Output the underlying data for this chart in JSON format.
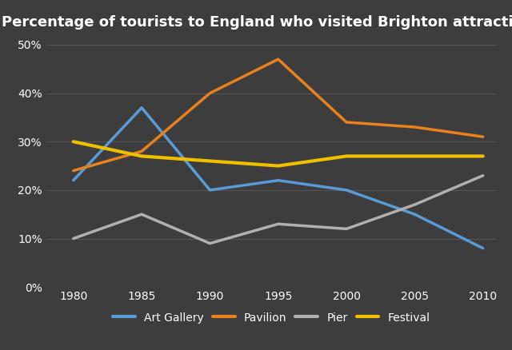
{
  "title": "Percentage of tourists to England who visited Brighton attractions",
  "years": [
    1980,
    1985,
    1990,
    1995,
    2000,
    2005,
    2010
  ],
  "series": {
    "Art Gallery": {
      "values": [
        22,
        37,
        20,
        22,
        20,
        15,
        8
      ],
      "color": "#5b9bd5",
      "linewidth": 2.5
    },
    "Pavilion": {
      "values": [
        24,
        28,
        40,
        47,
        34,
        33,
        31
      ],
      "color": "#e8821e",
      "linewidth": 2.5
    },
    "Pier": {
      "values": [
        10,
        15,
        9,
        13,
        12,
        17,
        23
      ],
      "color": "#b0b0b0",
      "linewidth": 2.5
    },
    "Festival": {
      "values": [
        30,
        27,
        26,
        25,
        27,
        27,
        27
      ],
      "color": "#f0c000",
      "linewidth": 3.0
    }
  },
  "legend_order": [
    "Art Gallery",
    "Pavilion",
    "Pier",
    "Festival"
  ],
  "xlim": [
    1978,
    2011
  ],
  "ylim": [
    0,
    52
  ],
  "yticks": [
    0,
    10,
    20,
    30,
    40,
    50
  ],
  "xticks": [
    1980,
    1985,
    1990,
    1995,
    2000,
    2005,
    2010
  ],
  "background_color": "#3d3d3d",
  "grid_color": "#555555",
  "text_color": "#ffffff",
  "title_fontsize": 13,
  "tick_fontsize": 10,
  "legend_fontsize": 10
}
